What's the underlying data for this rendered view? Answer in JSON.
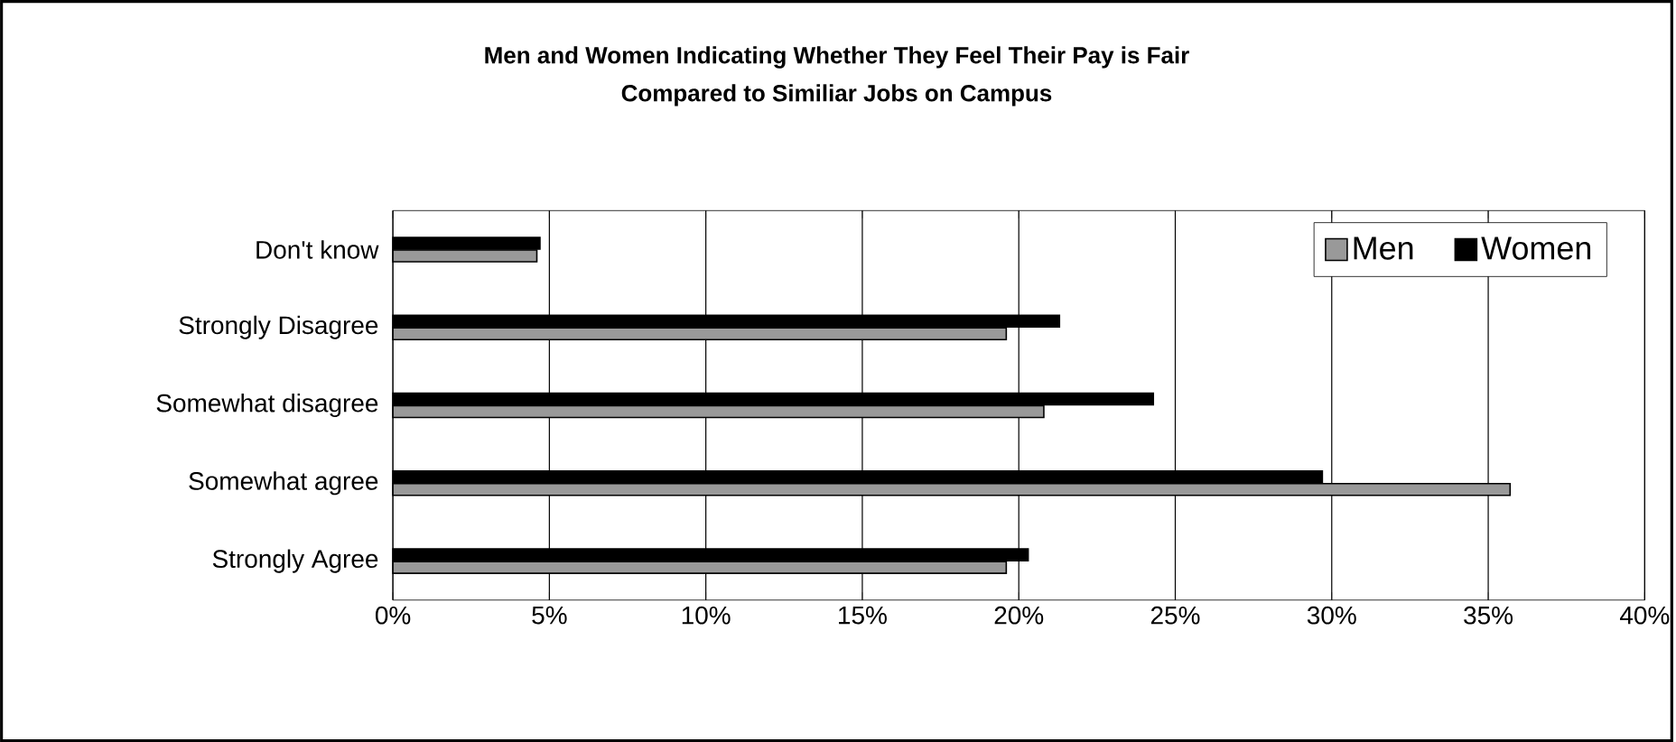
{
  "chart_data": {
    "type": "bar",
    "orientation": "horizontal",
    "title": "Men and Women Indicating Whether They Feel Their Pay is Fair",
    "subtitle": "Compared to Similiar Jobs on Campus",
    "categories": [
      "Don't know",
      "Strongly Disagree",
      "Somewhat disagree",
      "Somewhat agree",
      "Strongly Agree"
    ],
    "series": [
      {
        "name": "Men",
        "color": "#999999",
        "values": [
          4.6,
          19.6,
          20.8,
          35.7,
          19.6
        ]
      },
      {
        "name": "Women",
        "color": "#000000",
        "values": [
          4.7,
          21.3,
          24.3,
          29.7,
          20.3
        ]
      }
    ],
    "xlim": [
      0,
      40
    ],
    "xticks": [
      {
        "value": 0,
        "label": "0%"
      },
      {
        "value": 5,
        "label": "5%"
      },
      {
        "value": 10,
        "label": "10%"
      },
      {
        "value": 15,
        "label": "15%"
      },
      {
        "value": 20,
        "label": "20%"
      },
      {
        "value": 25,
        "label": "25%"
      },
      {
        "value": 30,
        "label": "30%"
      },
      {
        "value": 35,
        "label": "35%"
      },
      {
        "value": 40,
        "label": "40%"
      }
    ],
    "grid": "x",
    "legend": "top right"
  }
}
